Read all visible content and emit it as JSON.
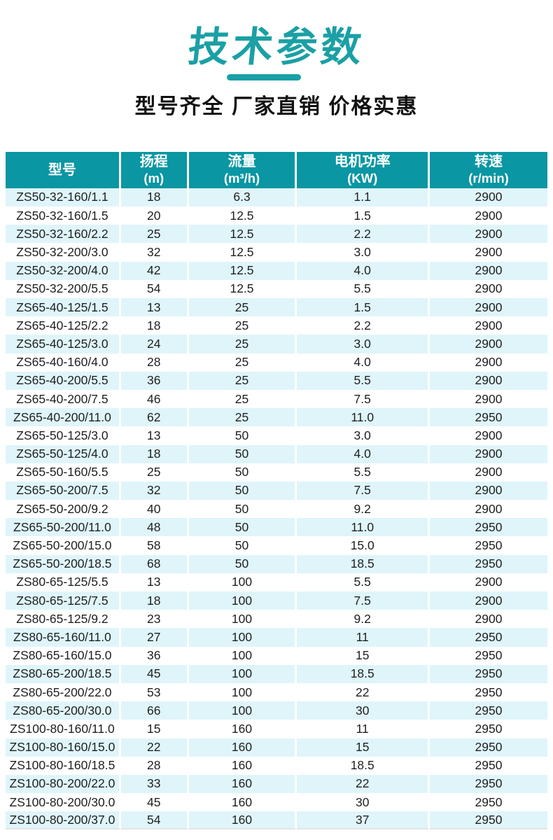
{
  "page": {
    "title": "技术参数",
    "subtitle": "型号齐全 厂家直销 价格实惠"
  },
  "colors": {
    "accent_teal": "#0A96A3",
    "title_teal": "#1AA0A5",
    "row_alt_blue": "#DFF5FA",
    "body_text": "#1F1F1F"
  },
  "table": {
    "columns": [
      {
        "label": "型号",
        "unit": ""
      },
      {
        "label": "扬程",
        "unit": "(m)"
      },
      {
        "label": "流量",
        "unit": "(m³/h)"
      },
      {
        "label": "电机功率",
        "unit": "(KW)"
      },
      {
        "label": "转速",
        "unit": "(r/min)"
      }
    ],
    "rows": [
      [
        "ZS50-32-160/1.1",
        "18",
        "6.3",
        "1.1",
        "2900"
      ],
      [
        "ZS50-32-160/1.5",
        "20",
        "12.5",
        "1.5",
        "2900"
      ],
      [
        "ZS50-32-160/2.2",
        "25",
        "12.5",
        "2.2",
        "2900"
      ],
      [
        "ZS50-32-200/3.0",
        "32",
        "12.5",
        "3.0",
        "2900"
      ],
      [
        "ZS50-32-200/4.0",
        "42",
        "12.5",
        "4.0",
        "2900"
      ],
      [
        "ZS50-32-200/5.5",
        "54",
        "12.5",
        "5.5",
        "2900"
      ],
      [
        "ZS65-40-125/1.5",
        "13",
        "25",
        "1.5",
        "2900"
      ],
      [
        "ZS65-40-125/2.2",
        "18",
        "25",
        "2.2",
        "2900"
      ],
      [
        "ZS65-40-125/3.0",
        "24",
        "25",
        "3.0",
        "2900"
      ],
      [
        "ZS65-40-160/4.0",
        "28",
        "25",
        "4.0",
        "2900"
      ],
      [
        "ZS65-40-200/5.5",
        "36",
        "25",
        "5.5",
        "2900"
      ],
      [
        "ZS65-40-200/7.5",
        "46",
        "25",
        "7.5",
        "2900"
      ],
      [
        "ZS65-40-200/11.0",
        "62",
        "25",
        "11.0",
        "2950"
      ],
      [
        "ZS65-50-125/3.0",
        "13",
        "50",
        "3.0",
        "2900"
      ],
      [
        "ZS65-50-125/4.0",
        "18",
        "50",
        "4.0",
        "2900"
      ],
      [
        "ZS65-50-160/5.5",
        "25",
        "50",
        "5.5",
        "2900"
      ],
      [
        "ZS65-50-200/7.5",
        "32",
        "50",
        "7.5",
        "2900"
      ],
      [
        "ZS65-50-200/9.2",
        "40",
        "50",
        "9.2",
        "2900"
      ],
      [
        "ZS65-50-200/11.0",
        "48",
        "50",
        "11.0",
        "2950"
      ],
      [
        "ZS65-50-200/15.0",
        "58",
        "50",
        "15.0",
        "2950"
      ],
      [
        "ZS65-50-200/18.5",
        "68",
        "50",
        "18.5",
        "2950"
      ],
      [
        "ZS80-65-125/5.5",
        "13",
        "100",
        "5.5",
        "2900"
      ],
      [
        "ZS80-65-125/7.5",
        "18",
        "100",
        "7.5",
        "2900"
      ],
      [
        "ZS80-65-125/9.2",
        "23",
        "100",
        "9.2",
        "2900"
      ],
      [
        "ZS80-65-160/11.0",
        "27",
        "100",
        "11",
        "2950"
      ],
      [
        "ZS80-65-160/15.0",
        "36",
        "100",
        "15",
        "2950"
      ],
      [
        "ZS80-65-200/18.5",
        "45",
        "100",
        "18.5",
        "2950"
      ],
      [
        "ZS80-65-200/22.0",
        "53",
        "100",
        "22",
        "2950"
      ],
      [
        "ZS80-65-200/30.0",
        "66",
        "100",
        "30",
        "2950"
      ],
      [
        "ZS100-80-160/11.0",
        "15",
        "160",
        "11",
        "2950"
      ],
      [
        "ZS100-80-160/15.0",
        "22",
        "160",
        "15",
        "2950"
      ],
      [
        "ZS100-80-160/18.5",
        "28",
        "160",
        "18.5",
        "2950"
      ],
      [
        "ZS100-80-200/22.0",
        "33",
        "160",
        "22",
        "2950"
      ],
      [
        "ZS100-80-200/30.0",
        "45",
        "160",
        "30",
        "2950"
      ],
      [
        "ZS100-80-200/37.0",
        "54",
        "160",
        "37",
        "2950"
      ]
    ]
  }
}
